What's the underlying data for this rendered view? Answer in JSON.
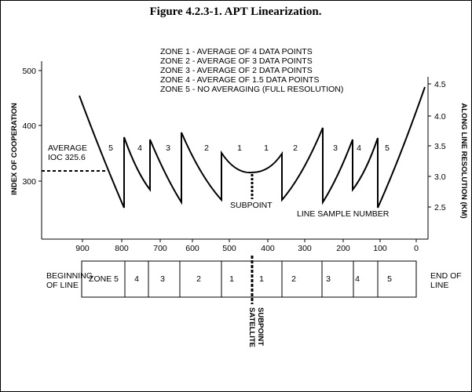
{
  "title": "Figure 4.2.3-1.  APT Linearization.",
  "legend": [
    "ZONE 1 - AVERAGE OF 4 DATA POINTS",
    "ZONE 2 - AVERAGE OF 3 DATA POINTS",
    "ZONE 3 - AVERAGE OF 2 DATA POINTS",
    "ZONE 4 - AVERAGE OF 1.5 DATA POINTS",
    "ZONE 5 - NO AVERAGING (FULL RESOLUTION)"
  ],
  "left_axis": {
    "label": "INDEX OF COOPERATION",
    "ticks": [
      "500",
      "400",
      "300"
    ]
  },
  "right_axis": {
    "label": "ALONG LINE RESOLUTION (KM)",
    "ticks": [
      "4.5",
      "4.0",
      "3.5",
      "3.0",
      "2.5"
    ]
  },
  "x_ticks": [
    "900",
    "800",
    "700",
    "600",
    "500",
    "400",
    "300",
    "200",
    "100",
    "0"
  ],
  "x_label": "LINE SAMPLE NUMBER",
  "average_label": [
    "AVERAGE",
    "IOC 325.6"
  ],
  "subpoint_label": "SUBPOINT",
  "curve_zone_numbers": [
    "5",
    "4",
    "3",
    "2",
    "1",
    "1",
    "2",
    "3",
    "4",
    "5"
  ],
  "bar": {
    "left_label": [
      "BEGINNING",
      "OF LINE"
    ],
    "right_label": [
      "END OF",
      "LINE"
    ],
    "zones": [
      "ZONE 5",
      "4",
      "3",
      "2",
      "1",
      "1",
      "2",
      "3",
      "4",
      "5"
    ]
  },
  "satellite_label": [
    "SATELLITE",
    "SUBPOINT"
  ]
}
